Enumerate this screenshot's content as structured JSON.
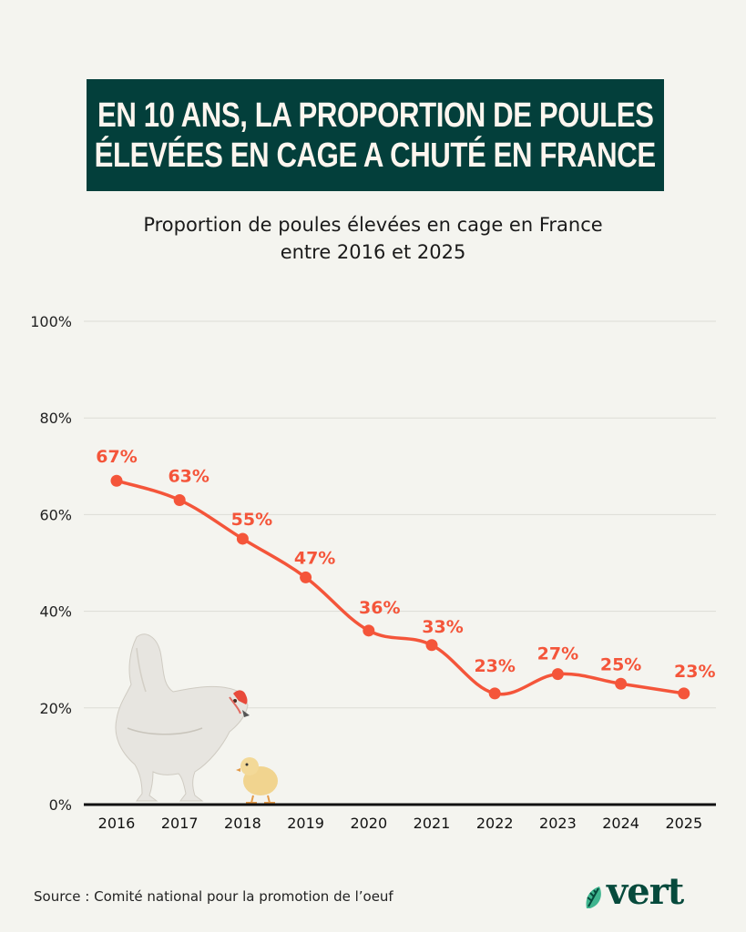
{
  "header": {
    "title_lines": [
      "EN 10 ANS, LA PROPORTION DE POULES",
      "ÉLEVÉES EN CAGE A CHUTÉ EN FRANCE"
    ]
  },
  "chart_data": {
    "type": "line",
    "title": "EN 10 ANS, LA PROPORTION DE POULES ÉLEVÉES EN CAGE A CHUTÉ EN FRANCE",
    "subtitle_lines": [
      "Proportion de poules élevées en cage en France",
      "entre 2016 et 2025"
    ],
    "xlabel": "",
    "ylabel": "",
    "categories": [
      "2016",
      "2017",
      "2018",
      "2019",
      "2020",
      "2021",
      "2022",
      "2023",
      "2024",
      "2025"
    ],
    "series": [
      {
        "name": "Proportion de poules élevées en cage",
        "values": [
          67,
          63,
          55,
          47,
          36,
          33,
          23,
          27,
          25,
          23
        ],
        "labels": [
          "67%",
          "63%",
          "55%",
          "47%",
          "36%",
          "33%",
          "23%",
          "27%",
          "25%",
          "23%"
        ],
        "color": "#f4553a"
      }
    ],
    "ylim": [
      0,
      100
    ],
    "yticks": [
      0,
      20,
      40,
      60,
      80,
      100
    ],
    "ytick_labels": [
      "0%",
      "20%",
      "40%",
      "60%",
      "80%",
      "100%"
    ],
    "grid": true,
    "legend": "none"
  },
  "footer": {
    "source": "Source : Comité national pour la promotion de l’oeuf",
    "logo_text": "vert"
  },
  "colors": {
    "title_bg": "#033f3b",
    "title_text": "#fdf6ef",
    "line": "#f4553a",
    "logo": "#064a3c",
    "background": "#f4f4ef"
  }
}
